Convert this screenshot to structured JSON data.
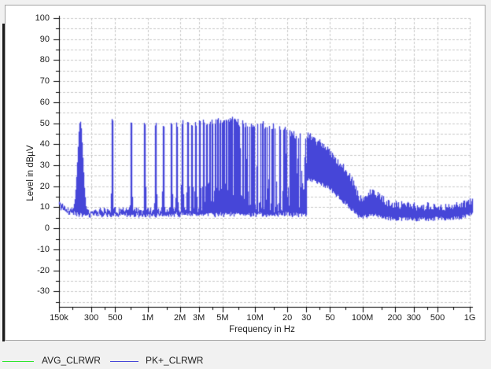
{
  "window": {
    "background": "#f1f1f1",
    "panel_background": "#ffffff",
    "panel_border": "#a3a3a3",
    "grid_color": "#c9c9c9",
    "axis_color": "#000000",
    "text_color": "#1c1c1c"
  },
  "chart_data": {
    "type": "line",
    "title": "",
    "xlabel": "Frequency in Hz",
    "ylabel": "Level in dBµV",
    "x_scale": "log",
    "x_range_hz": [
      150000,
      1000000000
    ],
    "y_range_db": [
      -37.5,
      100
    ],
    "y_major_tick_labels": [
      "100",
      "90",
      "80",
      "70",
      "60",
      "50",
      "40",
      "30",
      "20",
      "10",
      "0",
      "-10",
      "-20",
      "-30"
    ],
    "y_major_ticks_db": [
      100,
      90,
      80,
      70,
      60,
      50,
      40,
      30,
      20,
      10,
      0,
      -10,
      -20,
      -30
    ],
    "y_grid_step_db": 5,
    "grid": "on",
    "legend_position": "bottom",
    "x_major_ticks": [
      {
        "hz": 150000,
        "label": "150k"
      },
      {
        "hz": 300000,
        "label": "300"
      },
      {
        "hz": 500000,
        "label": "500"
      },
      {
        "hz": 1000000,
        "label": "1M"
      },
      {
        "hz": 2000000,
        "label": "2M"
      },
      {
        "hz": 3000000,
        "label": "3M"
      },
      {
        "hz": 5000000,
        "label": "5M"
      },
      {
        "hz": 10000000,
        "label": "10M"
      },
      {
        "hz": 20000000,
        "label": "20"
      },
      {
        "hz": 30000000,
        "label": "30"
      },
      {
        "hz": 50000000,
        "label": "50"
      },
      {
        "hz": 100000000,
        "label": "100M"
      },
      {
        "hz": 200000000,
        "label": "200"
      },
      {
        "hz": 300000000,
        "label": "300"
      },
      {
        "hz": 500000000,
        "label": "500"
      },
      {
        "hz": 1000000000,
        "label": "1G"
      }
    ],
    "x_minor_ticks_hz": [
      200000,
      400000,
      700000,
      1500000,
      4000000,
      7000000,
      15000000,
      40000000,
      70000000,
      150000000,
      400000000,
      700000000
    ],
    "series": [
      {
        "name": "AVG_CLRWR",
        "color": "#2de52d",
        "visible_in_plot": false
      },
      {
        "name": "PK+_CLRWR",
        "color": "#4646d8",
        "visible_in_plot": true
      }
    ],
    "trace_model": {
      "description": "Peak detector EMI scan: comb of switching harmonics (~235 kHz spacing) up to 30 MHz over a ~7 dBµV noise floor, receiver band step at 30 MHz, broadband hump decaying 45->10 dBµV from 30 MHz to 100 MHz, small bump near 120 MHz, ~6-12 dBµV noise to 1 GHz.",
      "comb_fundamental_hz": 235000,
      "comb_upper_envelope": [
        [
          235000,
          50
        ],
        [
          470000,
          52
        ],
        [
          705000,
          49
        ],
        [
          940000,
          50
        ],
        [
          1500000,
          49
        ],
        [
          2000000,
          50
        ],
        [
          3000000,
          50
        ],
        [
          4000000,
          51
        ],
        [
          5000000,
          51
        ],
        [
          7000000,
          52
        ],
        [
          10000000,
          52
        ],
        [
          15000000,
          50
        ],
        [
          20000000,
          48
        ],
        [
          25000000,
          46
        ],
        [
          30000000,
          45
        ]
      ],
      "noise_floor_db": [
        [
          150000,
          11
        ],
        [
          170000,
          8.5
        ],
        [
          220000,
          7
        ],
        [
          300000,
          6.8
        ],
        [
          1000000,
          6.5
        ],
        [
          3000000,
          7
        ],
        [
          10000000,
          7
        ],
        [
          30000000,
          7
        ]
      ],
      "mid_fill_envelope": [
        [
          3000000,
          12
        ],
        [
          4000000,
          16
        ],
        [
          5000000,
          22
        ],
        [
          6000000,
          28
        ],
        [
          7000000,
          33
        ],
        [
          8000000,
          37
        ],
        [
          9000000,
          40
        ],
        [
          10000000,
          42
        ],
        [
          15000000,
          40
        ],
        [
          20000000,
          38
        ],
        [
          25000000,
          36
        ],
        [
          30000000,
          35
        ]
      ],
      "band_above_30mhz": {
        "top_db": [
          [
            30000000,
            45
          ],
          [
            35000000,
            42
          ],
          [
            40000000,
            40
          ],
          [
            50000000,
            36
          ],
          [
            60000000,
            31
          ],
          [
            70000000,
            27
          ],
          [
            80000000,
            22
          ],
          [
            90000000,
            16
          ],
          [
            97000000,
            13
          ],
          [
            105000000,
            15
          ],
          [
            120000000,
            17
          ],
          [
            140000000,
            15
          ],
          [
            170000000,
            12
          ],
          [
            200000000,
            11
          ],
          [
            300000000,
            10
          ],
          [
            500000000,
            10
          ],
          [
            700000000,
            10
          ],
          [
            900000000,
            11
          ],
          [
            1000000000,
            12
          ]
        ],
        "bottom_db": [
          [
            30000000,
            25
          ],
          [
            40000000,
            23
          ],
          [
            50000000,
            20
          ],
          [
            60000000,
            16
          ],
          [
            70000000,
            13
          ],
          [
            80000000,
            10
          ],
          [
            90000000,
            7
          ],
          [
            97000000,
            6
          ],
          [
            105000000,
            7
          ],
          [
            120000000,
            8
          ],
          [
            140000000,
            7
          ],
          [
            170000000,
            6
          ],
          [
            200000000,
            6
          ],
          [
            300000000,
            5.5
          ],
          [
            500000000,
            6
          ],
          [
            700000000,
            6
          ],
          [
            900000000,
            7
          ],
          [
            1000000000,
            8
          ]
        ]
      }
    }
  },
  "legend": {
    "items": [
      {
        "label": "AVG_CLRWR",
        "color": "#2de52d"
      },
      {
        "label": "PK+_CLRWR",
        "color": "#4646d8"
      }
    ]
  }
}
